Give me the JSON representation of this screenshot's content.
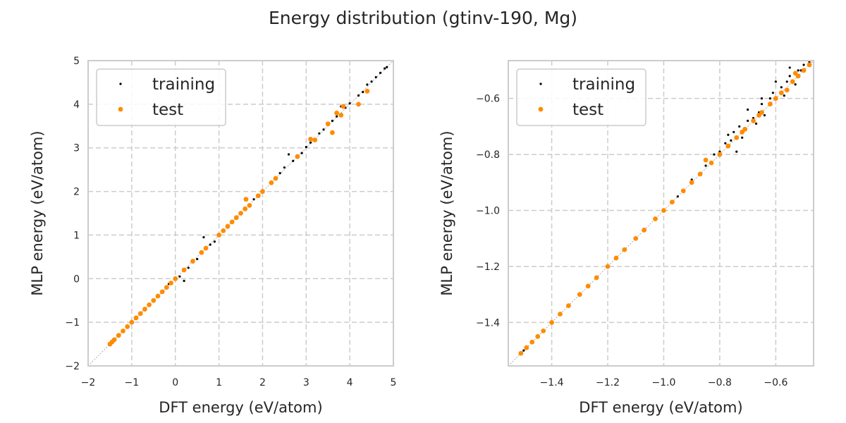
{
  "figure": {
    "title": "Energy distribution (gtinv-190, Mg)"
  },
  "colors": {
    "training": "#000000",
    "test": "#ff8c00",
    "grid": "#cccccc",
    "diagonal": "#999999"
  },
  "chart_data": [
    {
      "type": "scatter",
      "title": "",
      "xlabel": "DFT energy (eV/atom)",
      "ylabel": "MLP energy (eV/atom)",
      "xlim": [
        -2,
        5
      ],
      "ylim": [
        -2,
        5
      ],
      "xticks": [
        -2,
        -1,
        0,
        1,
        2,
        3,
        4,
        5
      ],
      "xtick_labels": [
        "−2",
        "−1",
        "0",
        "1",
        "2",
        "3",
        "4",
        "5"
      ],
      "yticks": [
        -2,
        -1,
        0,
        1,
        2,
        3,
        4,
        5
      ],
      "ytick_labels": [
        "−2",
        "−1",
        "0",
        "1",
        "2",
        "3",
        "4",
        "5"
      ],
      "grid": true,
      "legend": "top-left",
      "diagonal": true,
      "series": [
        {
          "name": "training",
          "color": "#000000",
          "points": [
            [
              -1.45,
              -1.44
            ],
            [
              -1.3,
              -1.29
            ],
            [
              -1.1,
              -1.09
            ],
            [
              -0.9,
              -0.88
            ],
            [
              -0.7,
              -0.7
            ],
            [
              -0.5,
              -0.48
            ],
            [
              -0.3,
              -0.31
            ],
            [
              -0.15,
              -0.12
            ],
            [
              0.0,
              0.02
            ],
            [
              0.1,
              0.05
            ],
            [
              0.2,
              -0.05
            ],
            [
              0.3,
              0.25
            ],
            [
              0.5,
              0.45
            ],
            [
              0.6,
              0.62
            ],
            [
              0.8,
              0.78
            ],
            [
              0.9,
              0.85
            ],
            [
              1.0,
              0.98
            ],
            [
              1.2,
              1.17
            ],
            [
              1.4,
              1.42
            ],
            [
              1.6,
              1.58
            ],
            [
              1.8,
              1.82
            ],
            [
              2.0,
              2.02
            ],
            [
              2.2,
              2.18
            ],
            [
              2.4,
              2.42
            ],
            [
              2.5,
              2.55
            ],
            [
              2.7,
              2.7
            ],
            [
              2.9,
              2.88
            ],
            [
              3.0,
              3.02
            ],
            [
              3.1,
              3.12
            ],
            [
              3.2,
              3.18
            ],
            [
              3.3,
              3.33
            ],
            [
              3.4,
              3.42
            ],
            [
              3.5,
              3.56
            ],
            [
              3.6,
              3.62
            ],
            [
              3.7,
              3.72
            ],
            [
              3.9,
              3.92
            ],
            [
              4.0,
              4.02
            ],
            [
              4.2,
              4.2
            ],
            [
              4.4,
              4.45
            ],
            [
              4.5,
              4.52
            ],
            [
              4.6,
              4.62
            ],
            [
              4.7,
              4.72
            ],
            [
              4.8,
              4.82
            ],
            [
              4.85,
              4.85
            ],
            [
              0.65,
              0.95
            ],
            [
              2.6,
              2.85
            ],
            [
              3.8,
              3.95
            ],
            [
              4.3,
              4.28
            ]
          ]
        },
        {
          "name": "test",
          "color": "#ff8c00",
          "points": [
            [
              -1.5,
              -1.5
            ],
            [
              -1.45,
              -1.45
            ],
            [
              -1.4,
              -1.4
            ],
            [
              -1.3,
              -1.3
            ],
            [
              -1.2,
              -1.2
            ],
            [
              -1.1,
              -1.1
            ],
            [
              -1.0,
              -1.0
            ],
            [
              -0.9,
              -0.9
            ],
            [
              -0.8,
              -0.8
            ],
            [
              -0.7,
              -0.7
            ],
            [
              -0.6,
              -0.6
            ],
            [
              -0.5,
              -0.5
            ],
            [
              -0.4,
              -0.4
            ],
            [
              -0.3,
              -0.3
            ],
            [
              -0.2,
              -0.2
            ],
            [
              -0.1,
              -0.1
            ],
            [
              0.0,
              0.0
            ],
            [
              0.2,
              0.2
            ],
            [
              0.4,
              0.4
            ],
            [
              0.6,
              0.6
            ],
            [
              0.7,
              0.7
            ],
            [
              1.0,
              1.0
            ],
            [
              1.1,
              1.1
            ],
            [
              1.2,
              1.2
            ],
            [
              1.3,
              1.3
            ],
            [
              1.4,
              1.4
            ],
            [
              1.5,
              1.5
            ],
            [
              1.6,
              1.6
            ],
            [
              1.62,
              1.82
            ],
            [
              1.7,
              1.68
            ],
            [
              1.9,
              1.9
            ],
            [
              2.0,
              2.0
            ],
            [
              2.2,
              2.2
            ],
            [
              2.3,
              2.3
            ],
            [
              2.8,
              2.8
            ],
            [
              3.1,
              3.2
            ],
            [
              3.2,
              3.18
            ],
            [
              3.5,
              3.55
            ],
            [
              3.6,
              3.35
            ],
            [
              3.7,
              3.8
            ],
            [
              3.85,
              3.95
            ],
            [
              4.2,
              4.0
            ],
            [
              4.4,
              4.3
            ],
            [
              3.8,
              3.75
            ]
          ]
        }
      ]
    },
    {
      "type": "scatter",
      "title": "",
      "xlabel": "DFT energy (eV/atom)",
      "ylabel": "MLP energy (eV/atom)",
      "xlim": [
        -1.555,
        -0.465
      ],
      "ylim": [
        -1.555,
        -0.465
      ],
      "xticks": [
        -1.4,
        -1.2,
        -1.0,
        -0.8,
        -0.6
      ],
      "xtick_labels": [
        "−1.4",
        "−1.2",
        "−1.0",
        "−0.8",
        "−0.6"
      ],
      "yticks": [
        -1.4,
        -1.2,
        -1.0,
        -0.8,
        -0.6
      ],
      "ytick_labels": [
        "−1.4",
        "−1.2",
        "−1.0",
        "−0.8",
        "−0.6"
      ],
      "grid": true,
      "legend": "top-left",
      "diagonal": true,
      "series": [
        {
          "name": "training",
          "color": "#000000",
          "points": [
            [
              -1.5,
              -1.5
            ],
            [
              -1.45,
              -1.45
            ],
            [
              -1.3,
              -1.3
            ],
            [
              -1.2,
              -1.2
            ],
            [
              -1.1,
              -1.1
            ],
            [
              -1.0,
              -1.0
            ],
            [
              -0.95,
              -0.95
            ],
            [
              -0.9,
              -0.89
            ],
            [
              -0.85,
              -0.84
            ],
            [
              -0.82,
              -0.8
            ],
            [
              -0.8,
              -0.79
            ],
            [
              -0.78,
              -0.76
            ],
            [
              -0.76,
              -0.75
            ],
            [
              -0.75,
              -0.72
            ],
            [
              -0.73,
              -0.7
            ],
            [
              -0.72,
              -0.74
            ],
            [
              -0.7,
              -0.68
            ],
            [
              -0.68,
              -0.67
            ],
            [
              -0.66,
              -0.65
            ],
            [
              -0.65,
              -0.62
            ],
            [
              -0.64,
              -0.66
            ],
            [
              -0.62,
              -0.6
            ],
            [
              -0.61,
              -0.58
            ],
            [
              -0.6,
              -0.6
            ],
            [
              -0.58,
              -0.56
            ],
            [
              -0.57,
              -0.59
            ],
            [
              -0.56,
              -0.54
            ],
            [
              -0.55,
              -0.52
            ],
            [
              -0.53,
              -0.55
            ],
            [
              -0.52,
              -0.5
            ],
            [
              -0.51,
              -0.5
            ],
            [
              -0.5,
              -0.48
            ],
            [
              -0.48,
              -0.47
            ],
            [
              -0.7,
              -0.64
            ],
            [
              -0.74,
              -0.79
            ],
            [
              -0.6,
              -0.54
            ],
            [
              -0.65,
              -0.6
            ],
            [
              -0.77,
              -0.73
            ],
            [
              -0.55,
              -0.49
            ],
            [
              -0.67,
              -0.69
            ]
          ]
        },
        {
          "name": "test",
          "color": "#ff8c00",
          "points": [
            [
              -1.51,
              -1.51
            ],
            [
              -1.49,
              -1.49
            ],
            [
              -1.47,
              -1.47
            ],
            [
              -1.45,
              -1.45
            ],
            [
              -1.43,
              -1.43
            ],
            [
              -1.4,
              -1.4
            ],
            [
              -1.37,
              -1.37
            ],
            [
              -1.34,
              -1.34
            ],
            [
              -1.3,
              -1.3
            ],
            [
              -1.27,
              -1.27
            ],
            [
              -1.24,
              -1.24
            ],
            [
              -1.2,
              -1.2
            ],
            [
              -1.17,
              -1.17
            ],
            [
              -1.14,
              -1.14
            ],
            [
              -1.1,
              -1.1
            ],
            [
              -1.07,
              -1.07
            ],
            [
              -1.03,
              -1.03
            ],
            [
              -1.0,
              -1.0
            ],
            [
              -0.97,
              -0.97
            ],
            [
              -0.93,
              -0.93
            ],
            [
              -0.9,
              -0.9
            ],
            [
              -0.87,
              -0.87
            ],
            [
              -0.85,
              -0.82
            ],
            [
              -0.83,
              -0.83
            ],
            [
              -0.8,
              -0.8
            ],
            [
              -0.77,
              -0.77
            ],
            [
              -0.74,
              -0.74
            ],
            [
              -0.71,
              -0.71
            ],
            [
              -0.68,
              -0.68
            ],
            [
              -0.65,
              -0.65
            ],
            [
              -0.62,
              -0.62
            ],
            [
              -0.6,
              -0.6
            ],
            [
              -0.58,
              -0.58
            ],
            [
              -0.56,
              -0.57
            ],
            [
              -0.54,
              -0.54
            ],
            [
              -0.53,
              -0.51
            ],
            [
              -0.52,
              -0.52
            ],
            [
              -0.5,
              -0.5
            ],
            [
              -0.48,
              -0.48
            ],
            [
              -0.66,
              -0.66
            ],
            [
              -0.72,
              -0.72
            ]
          ]
        }
      ]
    }
  ]
}
